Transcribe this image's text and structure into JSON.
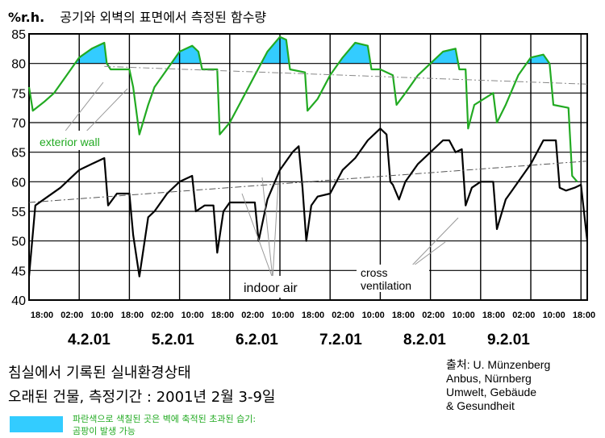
{
  "title": {
    "unit": "%r.h.",
    "text": "공기와 외벽의 표면에서 측정된 함수량"
  },
  "colors": {
    "wall": "#22aa22",
    "indoor": "#000000",
    "mould": "#33ccff",
    "grid": "#000000"
  },
  "chart_data": {
    "type": "line",
    "ylim": [
      40,
      85
    ],
    "yticks": [
      "85",
      "80",
      "75",
      "70",
      "65",
      "60",
      "55",
      "50",
      "45",
      "40"
    ],
    "x_tick_labels": [
      "18:00",
      "02:00",
      "10:00",
      "18:00",
      "02:00",
      "10:00",
      "18:00",
      "02:00",
      "10:00",
      "18:00",
      "02:00",
      "10:00",
      "18:00",
      "02:00",
      "10:00",
      "18:00",
      "02:00",
      "10:00",
      "18:00"
    ],
    "dates": [
      "4.2.01",
      "5.2.01",
      "6.2.01",
      "7.2.01",
      "8.2.01",
      "9.2.01"
    ],
    "grid": true,
    "annotations": [
      "exterior wall",
      "indoor air",
      "cross\nventilation"
    ],
    "series": [
      {
        "name": "exterior wall",
        "points": [
          [
            0,
            76
          ],
          [
            0.3,
            72
          ],
          [
            1.2,
            73.5
          ],
          [
            2,
            75
          ],
          [
            3,
            78
          ],
          [
            4,
            81
          ],
          [
            5,
            82.5
          ],
          [
            6,
            83.5
          ],
          [
            6.2,
            80
          ],
          [
            6.5,
            79
          ],
          [
            7,
            79
          ],
          [
            8,
            79
          ],
          [
            8.3,
            76
          ],
          [
            8.8,
            68
          ],
          [
            9.5,
            73
          ],
          [
            10,
            76
          ],
          [
            11,
            79
          ],
          [
            12,
            82
          ],
          [
            13,
            83
          ],
          [
            13.5,
            82
          ],
          [
            13.8,
            79
          ],
          [
            14.5,
            79
          ],
          [
            15,
            79
          ],
          [
            15.2,
            68
          ],
          [
            16,
            70
          ],
          [
            17,
            74
          ],
          [
            18,
            78
          ],
          [
            19,
            82
          ],
          [
            20,
            84.5
          ],
          [
            20.5,
            84
          ],
          [
            20.8,
            79
          ],
          [
            22,
            78.5
          ],
          [
            22.2,
            72
          ],
          [
            23,
            74
          ],
          [
            24,
            78
          ],
          [
            25,
            81
          ],
          [
            26,
            83.5
          ],
          [
            27,
            83
          ],
          [
            27.3,
            79
          ],
          [
            28,
            79
          ],
          [
            29,
            78
          ],
          [
            29.3,
            73
          ],
          [
            30,
            75
          ],
          [
            31,
            78
          ],
          [
            32,
            80
          ],
          [
            33,
            82
          ],
          [
            34,
            82.5
          ],
          [
            34.3,
            79
          ],
          [
            34.8,
            79
          ],
          [
            35,
            69
          ],
          [
            35.5,
            73
          ],
          [
            37,
            75
          ],
          [
            37.3,
            70
          ],
          [
            38,
            73
          ],
          [
            39,
            78
          ],
          [
            40,
            81
          ],
          [
            41,
            81.5
          ],
          [
            41.5,
            80
          ],
          [
            41.8,
            73
          ],
          [
            43,
            72.5
          ],
          [
            43.3,
            61
          ],
          [
            43.7,
            60
          ]
        ]
      },
      {
        "name": "indoor air",
        "points": [
          [
            0,
            44
          ],
          [
            0.5,
            56
          ],
          [
            1.5,
            57.5
          ],
          [
            2.5,
            59
          ],
          [
            4,
            62
          ],
          [
            5,
            63
          ],
          [
            6,
            64
          ],
          [
            6.3,
            56
          ],
          [
            7,
            58
          ],
          [
            8,
            58
          ],
          [
            8.3,
            51
          ],
          [
            8.8,
            44
          ],
          [
            9.5,
            54
          ],
          [
            10,
            55
          ],
          [
            11,
            58
          ],
          [
            12,
            60
          ],
          [
            13,
            61
          ],
          [
            13.3,
            55
          ],
          [
            14,
            56
          ],
          [
            14.7,
            56
          ],
          [
            15,
            48
          ],
          [
            15.5,
            55
          ],
          [
            16,
            56.5
          ],
          [
            17,
            56.5
          ],
          [
            18,
            56.5
          ],
          [
            18.3,
            50
          ],
          [
            19,
            57
          ],
          [
            20,
            62
          ],
          [
            21,
            65
          ],
          [
            21.5,
            66
          ],
          [
            21.8,
            59
          ],
          [
            22.1,
            50
          ],
          [
            22.5,
            56
          ],
          [
            23,
            57.5
          ],
          [
            24,
            58
          ],
          [
            25,
            62
          ],
          [
            26,
            64
          ],
          [
            27,
            67
          ],
          [
            28,
            69
          ],
          [
            28.5,
            68
          ],
          [
            28.8,
            60
          ],
          [
            29,
            59.5
          ],
          [
            29.5,
            57
          ],
          [
            30,
            60
          ],
          [
            31,
            63
          ],
          [
            32,
            65
          ],
          [
            33,
            67
          ],
          [
            33.5,
            67
          ],
          [
            34,
            65
          ],
          [
            34.5,
            65.5
          ],
          [
            34.8,
            56
          ],
          [
            35.3,
            59
          ],
          [
            36,
            60
          ],
          [
            37,
            60
          ],
          [
            37.3,
            52
          ],
          [
            38,
            57
          ],
          [
            39,
            60
          ],
          [
            40,
            63
          ],
          [
            41,
            67
          ],
          [
            42,
            67
          ],
          [
            42.3,
            59
          ],
          [
            42.8,
            58.5
          ],
          [
            43.5,
            59
          ],
          [
            44,
            59.5
          ],
          [
            44.5,
            50
          ]
        ]
      },
      {
        "name": "trend exterior wall",
        "points": [
          [
            6,
            79.5
          ],
          [
            44.5,
            76.5
          ]
        ]
      },
      {
        "name": "trend indoor air",
        "points": [
          [
            0,
            56.5
          ],
          [
            44.5,
            63.5
          ]
        ]
      }
    ]
  },
  "notes": [
    "침실에서 기록된 실내환경상태",
    "오래된 건물, 측정기간 : 2001년 2월 3-9일"
  ],
  "source": [
    "출처: U. Münzenberg",
    "Anbus, Nürnberg",
    "Umwelt, Gebäude",
    "& Gesundheit"
  ],
  "legend": {
    "text_line1": "파란색으로 색칠된 곳은 벽에 축적된 초과된 습기:",
    "text_line2": "곰팡이 발생 가능"
  }
}
